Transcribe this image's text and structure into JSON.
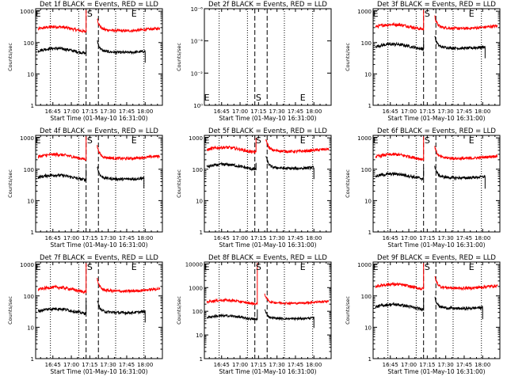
{
  "chart_data": [
    {
      "type": "line",
      "title": "Det 1f BLACK = Events, RED = LLD",
      "xlabel": "Start Time (01-May-10 16:31:00)",
      "ylabel": "Counts/sec",
      "x_ticks": [
        "16:45",
        "17:00",
        "17:15",
        "17:30",
        "17:45",
        "18:00"
      ],
      "y_ticks": [
        "1",
        "10",
        "100",
        "1000"
      ],
      "yscale": "log",
      "ylim": [
        1,
        1200
      ],
      "markers": [
        {
          "label": "E",
          "time": "16:33"
        },
        {
          "label": "S",
          "time": "17:15"
        },
        {
          "label": "E",
          "time": "17:51"
        }
      ],
      "dashed_lines": [
        "17:12",
        "17:22"
      ],
      "dotted_lines": [
        "16:43",
        "17:06",
        "17:36",
        "17:59"
      ],
      "series": [
        {
          "color": "#ff0000",
          "start": "16:33",
          "end": "18:12",
          "level": 270,
          "gap": [
            "17:12",
            "17:21"
          ],
          "spike": {
            "start": "17:12",
            "peak": 1100
          }
        },
        {
          "color": "#000000",
          "start": "16:33",
          "end": "18:00",
          "level": 55,
          "gap": [
            "17:12",
            "17:21"
          ],
          "spike": {
            "start": "17:12",
            "peak": 90
          }
        }
      ]
    },
    {
      "type": "line",
      "title": "Det 2f BLACK = Events, RED = LLD",
      "xlabel": "Start Time (01-May-10 16:31:00)",
      "ylabel": "Counts/sec",
      "x_ticks": [
        "16:45",
        "17:00",
        "17:15",
        "17:30",
        "17:45",
        "18:00"
      ],
      "y_ticks": [
        "10⁰",
        "10⁻²",
        "10⁻⁴",
        "10⁻⁶"
      ],
      "yscale": "log",
      "markers": [
        {
          "label": "E",
          "time": "16:33"
        },
        {
          "label": "S",
          "time": "17:15"
        },
        {
          "label": "E",
          "time": "17:51"
        }
      ],
      "dashed_lines": [
        "17:12",
        "17:22"
      ],
      "dotted_lines": [
        "16:43",
        "17:06",
        "17:36",
        "17:59"
      ],
      "series": []
    },
    {
      "type": "line",
      "title": "Det 3f BLACK = Events, RED = LLD",
      "xlabel": "Start Time (01-May-10 16:31:00)",
      "ylabel": "Counts/sec",
      "x_ticks": [
        "16:45",
        "17:00",
        "17:15",
        "17:30",
        "17:45",
        "18:00"
      ],
      "y_ticks": [
        "1",
        "10",
        "100",
        "1000"
      ],
      "yscale": "log",
      "ylim": [
        1,
        1200
      ],
      "markers": [
        {
          "label": "E",
          "time": "16:33"
        },
        {
          "label": "S",
          "time": "17:15"
        },
        {
          "label": "E",
          "time": "17:51"
        }
      ],
      "dashed_lines": [
        "17:12",
        "17:22"
      ],
      "dotted_lines": [
        "16:43",
        "17:06",
        "17:36",
        "17:59"
      ],
      "series": [
        {
          "color": "#ff0000",
          "start": "16:33",
          "end": "18:12",
          "level": 320,
          "gap": [
            "17:12",
            "17:21"
          ],
          "spike": {
            "start": "17:12",
            "peak": 1100
          }
        },
        {
          "color": "#000000",
          "start": "16:33",
          "end": "18:02",
          "level": 75,
          "gap": [
            "17:12",
            "17:21"
          ],
          "spike": {
            "start": "17:12",
            "peak": 110
          }
        }
      ]
    },
    {
      "type": "line",
      "title": "Det 4f BLACK = Events, RED = LLD",
      "xlabel": "Start Time (01-May-10 16:31:00)",
      "ylabel": "Counts/sec",
      "x_ticks": [
        "16:45",
        "17:00",
        "17:15",
        "17:30",
        "17:45",
        "18:00"
      ],
      "y_ticks": [
        "1",
        "10",
        "100",
        "1000"
      ],
      "yscale": "log",
      "ylim": [
        1,
        1200
      ],
      "markers": [
        {
          "label": "E",
          "time": "16:33"
        },
        {
          "label": "S",
          "time": "17:15"
        },
        {
          "label": "E",
          "time": "17:51"
        }
      ],
      "dashed_lines": [
        "17:12",
        "17:22"
      ],
      "dotted_lines": [
        "16:43",
        "17:06",
        "17:36",
        "17:59"
      ],
      "series": [
        {
          "color": "#ff0000",
          "start": "16:33",
          "end": "18:12",
          "level": 250,
          "gap": [
            "17:12",
            "17:21"
          ],
          "spike": {
            "start": "17:12",
            "peak": 1100
          }
        },
        {
          "color": "#000000",
          "start": "16:33",
          "end": "17:59",
          "level": 55,
          "gap": [
            "17:12",
            "17:21"
          ],
          "spike": {
            "start": "17:12",
            "peak": 100
          }
        }
      ]
    },
    {
      "type": "line",
      "title": "Det 5f BLACK = Events, RED = LLD",
      "xlabel": "Start Time (01-May-10 16:31:00)",
      "ylabel": "Counts/sec",
      "x_ticks": [
        "16:45",
        "17:00",
        "17:15",
        "17:30",
        "17:45",
        "18:00"
      ],
      "y_ticks": [
        "1",
        "10",
        "100",
        "1000"
      ],
      "yscale": "log",
      "ylim": [
        1,
        1200
      ],
      "markers": [
        {
          "label": "E",
          "time": "16:33"
        },
        {
          "label": "S",
          "time": "17:15"
        },
        {
          "label": "E",
          "time": "17:51"
        }
      ],
      "dashed_lines": [
        "17:12",
        "17:22"
      ],
      "dotted_lines": [
        "16:43",
        "17:06",
        "17:36",
        "17:59"
      ],
      "series": [
        {
          "color": "#ff0000",
          "start": "16:33",
          "end": "18:12",
          "level": 420,
          "gap": [
            "17:13",
            "17:21"
          ],
          "spike": {
            "start": "17:13",
            "peak": 1000
          }
        },
        {
          "color": "#000000",
          "start": "16:33",
          "end": "18:00",
          "level": 120,
          "gap": [
            "17:13",
            "17:21"
          ],
          "spike": {
            "start": "17:13",
            "peak": 160
          }
        }
      ]
    },
    {
      "type": "line",
      "title": "Det 6f BLACK = Events, RED = LLD",
      "xlabel": "Start Time (01-May-10 16:31:00)",
      "ylabel": "Counts/sec",
      "x_ticks": [
        "16:45",
        "17:00",
        "17:15",
        "17:30",
        "17:45",
        "18:00"
      ],
      "y_ticks": [
        "1",
        "10",
        "100",
        "1000"
      ],
      "yscale": "log",
      "ylim": [
        1,
        1200
      ],
      "markers": [
        {
          "label": "E",
          "time": "16:33"
        },
        {
          "label": "S",
          "time": "17:15"
        },
        {
          "label": "E",
          "time": "17:51"
        }
      ],
      "dashed_lines": [
        "17:12",
        "17:22"
      ],
      "dotted_lines": [
        "16:43",
        "17:06",
        "17:36",
        "17:59"
      ],
      "series": [
        {
          "color": "#ff0000",
          "start": "16:33",
          "end": "18:12",
          "level": 250,
          "gap": [
            "17:12",
            "17:21"
          ],
          "spike": {
            "start": "17:12",
            "peak": 1100
          }
        },
        {
          "color": "#000000",
          "start": "16:33",
          "end": "18:02",
          "level": 60,
          "gap": [
            "17:12",
            "17:21"
          ],
          "spike": {
            "start": "17:12",
            "peak": 110
          }
        }
      ]
    },
    {
      "type": "line",
      "title": "Det 7f BLACK = Events, RED = LLD",
      "xlabel": "Start Time (01-May-10 16:31:00)",
      "ylabel": "Counts/sec",
      "x_ticks": [
        "16:45",
        "17:00",
        "17:15",
        "17:30",
        "17:45",
        "18:00"
      ],
      "y_ticks": [
        "1",
        "10",
        "100",
        "1000"
      ],
      "yscale": "log",
      "ylim": [
        1,
        1200
      ],
      "markers": [
        {
          "label": "E",
          "time": "16:33"
        },
        {
          "label": "S",
          "time": "17:15"
        },
        {
          "label": "E",
          "time": "17:51"
        }
      ],
      "dashed_lines": [
        "17:12",
        "17:22"
      ],
      "dotted_lines": [
        "16:43",
        "17:06",
        "17:36",
        "17:59"
      ],
      "series": [
        {
          "color": "#ff0000",
          "start": "16:33",
          "end": "18:12",
          "level": 160,
          "gap": [
            "17:12",
            "17:21"
          ],
          "spike": {
            "start": "17:12",
            "peak": 1100
          }
        },
        {
          "color": "#000000",
          "start": "16:33",
          "end": "18:00",
          "level": 33,
          "gap": [
            "17:12",
            "17:21"
          ],
          "spike": {
            "start": "17:12",
            "peak": 70
          }
        }
      ]
    },
    {
      "type": "line",
      "title": "Det 8f BLACK = Events, RED = LLD",
      "xlabel": "Start Time (01-May-10 16:31:00)",
      "ylabel": "Counts/sec",
      "x_ticks": [
        "16:45",
        "17:00",
        "17:15",
        "17:30",
        "17:45",
        "18:00"
      ],
      "y_ticks": [
        "1",
        "10",
        "100",
        "1000",
        "10000"
      ],
      "yscale": "log",
      "ylim": [
        1,
        12000
      ],
      "markers": [
        {
          "label": "E",
          "time": "16:33"
        },
        {
          "label": "S",
          "time": "17:15"
        },
        {
          "label": "E",
          "time": "17:51"
        }
      ],
      "dashed_lines": [
        "17:12",
        "17:22"
      ],
      "dotted_lines": [
        "16:43",
        "17:06",
        "17:36",
        "17:59"
      ],
      "series": [
        {
          "color": "#ff0000",
          "start": "16:33",
          "end": "18:12",
          "level": 250,
          "gap": [
            "17:14",
            "17:20"
          ],
          "spike": {
            "start": "17:14",
            "peak": 11000
          }
        },
        {
          "color": "#000000",
          "start": "16:33",
          "end": "18:00",
          "level": 55,
          "gap": [
            "17:14",
            "17:20"
          ],
          "spike": {
            "start": "17:14",
            "peak": 120
          }
        }
      ]
    },
    {
      "type": "line",
      "title": "Det 9f BLACK = Events, RED = LLD",
      "xlabel": "Start Time (01-May-10 16:31:00)",
      "ylabel": "Counts/sec",
      "x_ticks": [
        "16:45",
        "17:00",
        "17:15",
        "17:30",
        "17:45",
        "18:00"
      ],
      "y_ticks": [
        "1",
        "10",
        "100",
        "1000"
      ],
      "yscale": "log",
      "ylim": [
        1,
        1200
      ],
      "markers": [
        {
          "label": "E",
          "time": "16:33"
        },
        {
          "label": "S",
          "time": "17:15"
        },
        {
          "label": "E",
          "time": "17:51"
        }
      ],
      "dashed_lines": [
        "17:12",
        "17:22"
      ],
      "dotted_lines": [
        "16:43",
        "17:06",
        "17:36",
        "17:59"
      ],
      "series": [
        {
          "color": "#ff0000",
          "start": "16:33",
          "end": "18:12",
          "level": 200,
          "gap": [
            "17:12",
            "17:21"
          ],
          "spike": {
            "start": "17:12",
            "peak": 1100
          }
        },
        {
          "color": "#000000",
          "start": "16:33",
          "end": "18:00",
          "level": 45,
          "gap": [
            "17:12",
            "17:21"
          ],
          "spike": {
            "start": "17:12",
            "peak": 90
          }
        }
      ]
    }
  ]
}
